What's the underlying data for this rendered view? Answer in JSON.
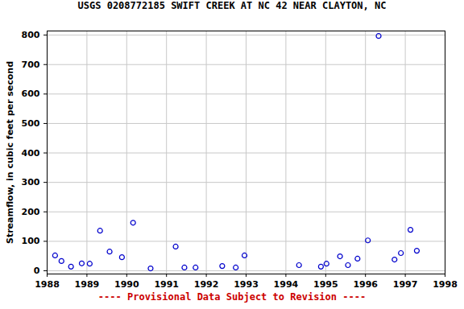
{
  "chart_data": {
    "type": "scatter",
    "title": "USGS 0208772185 SWIFT CREEK AT NC 42 NEAR CLAYTON, NC",
    "y_label": "Streamflow, in cubic feet per second",
    "caption": "---- Provisional Data Subject to Revision ----",
    "x": [
      1988.2,
      1988.36,
      1988.6,
      1988.87,
      1989.07,
      1989.33,
      1989.57,
      1989.88,
      1990.16,
      1990.6,
      1991.23,
      1991.45,
      1991.73,
      1992.4,
      1992.74,
      1992.96,
      1994.33,
      1994.88,
      1995.02,
      1995.36,
      1995.56,
      1995.8,
      1996.06,
      1996.33,
      1996.73,
      1996.89,
      1997.13,
      1997.29
    ],
    "values": [
      52,
      33,
      14,
      25,
      24,
      136,
      65,
      46,
      163,
      8,
      82,
      11,
      11,
      16,
      11,
      52,
      19,
      14,
      24,
      49,
      19,
      41,
      103,
      797,
      38,
      60,
      139,
      68
    ],
    "color": "#0000cc",
    "marker": "circle",
    "xlim": [
      1988,
      1998
    ],
    "xticks": [
      1988,
      1989,
      1990,
      1991,
      1992,
      1993,
      1994,
      1995,
      1996,
      1997,
      1998
    ],
    "ylim": [
      -11,
      814
    ],
    "yticks": [
      0,
      100,
      200,
      300,
      400,
      500,
      600,
      700,
      800
    ],
    "grid": true
  }
}
